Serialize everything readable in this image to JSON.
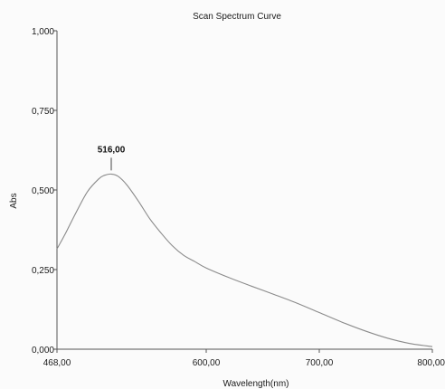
{
  "chart_data": {
    "type": "line",
    "title": "Scan Spectrum Curve",
    "xlabel": "Wavelength(nm)",
    "ylabel": "Abs",
    "xlim": [
      468,
      800
    ],
    "ylim": [
      0,
      1
    ],
    "x_ticks": [
      468,
      600,
      700,
      800
    ],
    "x_tick_labels": [
      "468,00",
      "600,00",
      "700,00",
      "800,00"
    ],
    "y_ticks": [
      0,
      0.25,
      0.5,
      0.75,
      1
    ],
    "y_tick_labels": [
      "0,000",
      "0,250",
      "0,500",
      "0,750",
      "1,000"
    ],
    "grid": false,
    "line_color": "#8a8a8a",
    "series": [
      {
        "x": [
          468,
          475,
          485,
          495,
          505,
          510,
          516,
          522,
          530,
          540,
          550,
          560,
          570,
          580,
          590,
          600,
          620,
          640,
          660,
          680,
          700,
          720,
          740,
          760,
          780,
          800
        ],
        "y": [
          0.315,
          0.36,
          0.43,
          0.495,
          0.535,
          0.546,
          0.55,
          0.543,
          0.515,
          0.465,
          0.41,
          0.365,
          0.325,
          0.295,
          0.275,
          0.255,
          0.225,
          0.198,
          0.172,
          0.145,
          0.115,
          0.085,
          0.058,
          0.035,
          0.018,
          0.008
        ]
      }
    ],
    "annotations": [
      {
        "text": "516,00",
        "x": 516,
        "y": 0.55
      }
    ]
  }
}
